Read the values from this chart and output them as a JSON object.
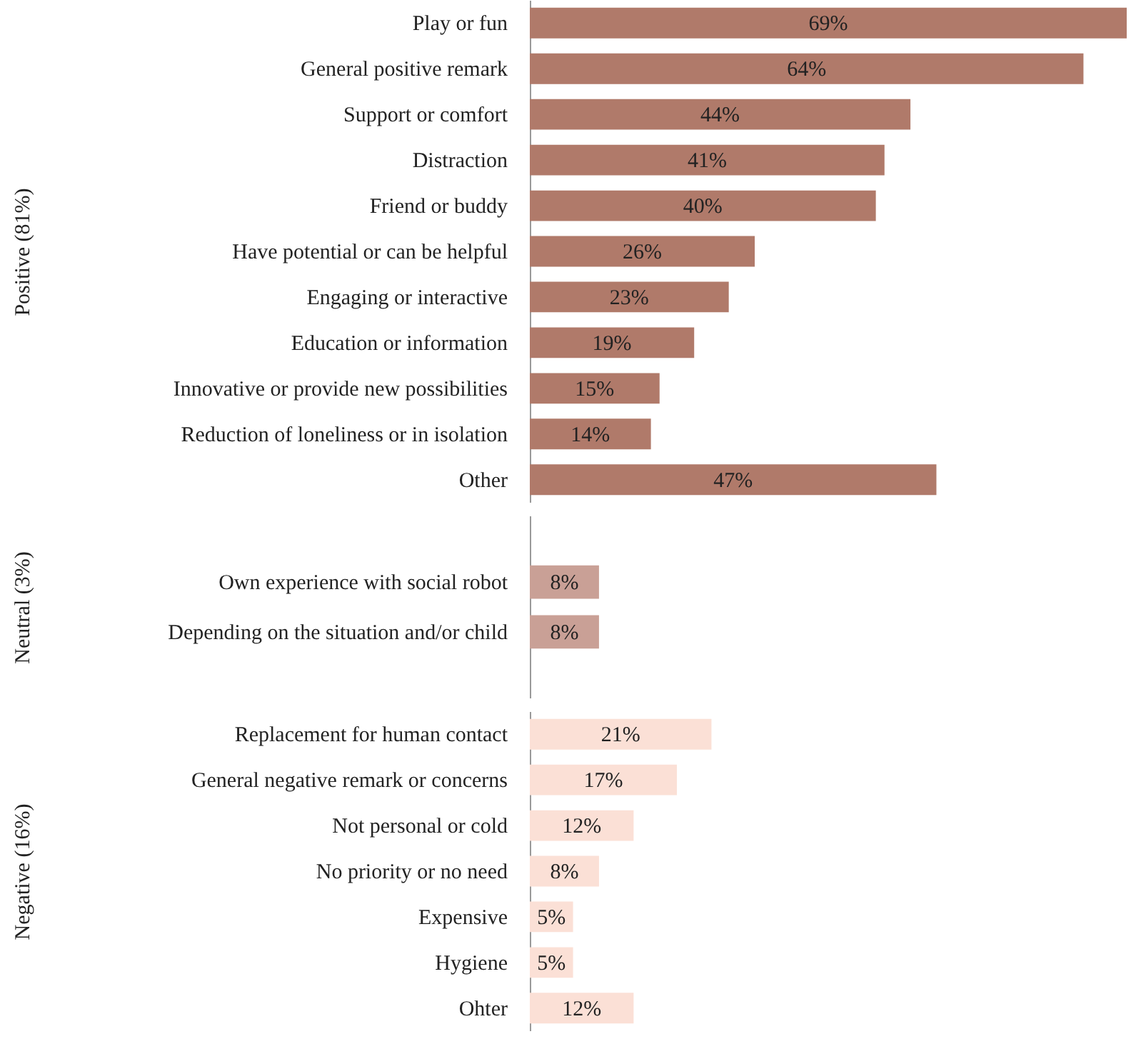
{
  "chart_data": [
    {
      "type": "bar",
      "orientation": "horizontal",
      "ylabel": "Positive (81%)",
      "categories": [
        "Play or fun",
        "General positive remark",
        "Support or comfort",
        "Distraction",
        "Friend or buddy",
        "Have potential or can be helpful",
        "Engaging or interactive",
        "Education or information",
        "Innovative or provide new possibilities",
        "Reduction of loneliness or in isolation",
        "Other"
      ],
      "values": [
        69,
        64,
        44,
        41,
        40,
        26,
        23,
        19,
        15,
        14,
        47
      ],
      "value_labels": [
        "69%",
        "64%",
        "44%",
        "41%",
        "40%",
        "26%",
        "23%",
        "19%",
        "15%",
        "14%",
        "47%"
      ],
      "color": "#b07a6a",
      "tick_labels": "y"
    },
    {
      "type": "bar",
      "orientation": "horizontal",
      "ylabel": "Neutral (3%)",
      "categories": [
        "Own experience with social robot",
        "Depending on the situation and/or child"
      ],
      "values": [
        8,
        8
      ],
      "value_labels": [
        "8%",
        "8%"
      ],
      "color": "#c9a096",
      "tick_labels": "y"
    },
    {
      "type": "bar",
      "orientation": "horizontal",
      "ylabel": "Negative (16%)",
      "categories": [
        "Replacement for human contact",
        "General negative remark or concerns",
        "Not personal or cold",
        "No priority or no need",
        "Expensive",
        "Hygiene",
        "Ohter"
      ],
      "values": [
        21,
        17,
        12,
        8,
        5,
        5,
        12
      ],
      "value_labels": [
        "21%",
        "17%",
        "12%",
        "8%",
        "5%",
        "5%",
        "12%"
      ],
      "color": "#fbe0d6",
      "tick_labels": "y"
    }
  ]
}
